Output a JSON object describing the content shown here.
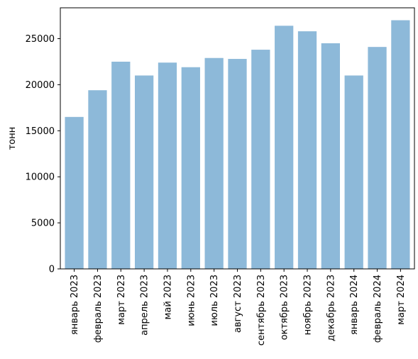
{
  "chart_data": {
    "type": "bar",
    "title": "",
    "xlabel": "",
    "ylabel": "тонн",
    "categories": [
      "январь 2023",
      "февраль 2023",
      "март 2023",
      "апрель 2023",
      "май 2023",
      "июнь 2023",
      "июль 2023",
      "август 2023",
      "сентябрь 2023",
      "октябрь 2023",
      "ноябрь 2023",
      "декабрь 2023",
      "январь 2024",
      "февраль 2024",
      "март 2024"
    ],
    "values": [
      16500,
      19400,
      22500,
      21000,
      22400,
      21900,
      22900,
      22800,
      23800,
      26400,
      25800,
      24500,
      21000,
      24100,
      27000
    ],
    "ylim": [
      0,
      28350
    ],
    "yticks": [
      0,
      5000,
      10000,
      15000,
      20000,
      25000
    ],
    "grid": false,
    "bar_color": "#8db9d9"
  }
}
